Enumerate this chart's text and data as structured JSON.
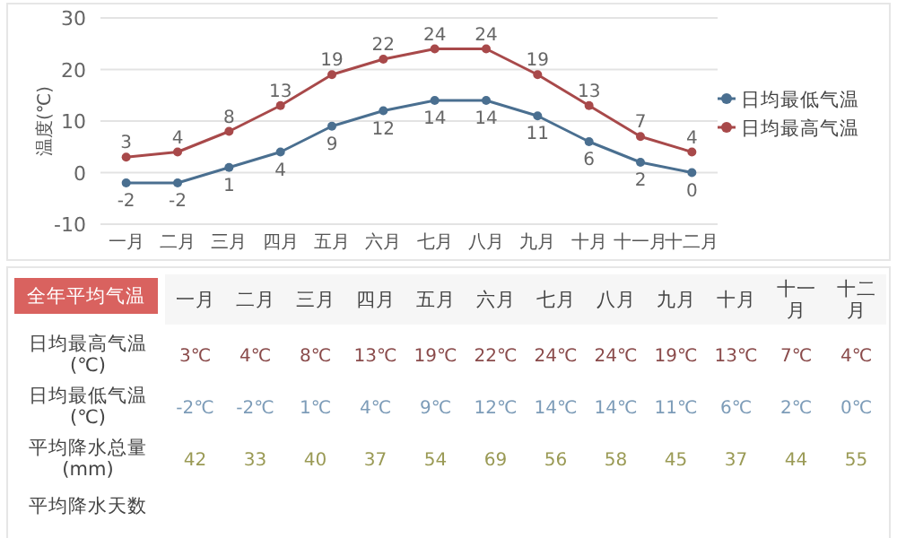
{
  "chart_data": [
    {
      "type": "line",
      "ylabel": "温度(℃)",
      "categories": [
        "一月",
        "二月",
        "三月",
        "四月",
        "五月",
        "六月",
        "七月",
        "八月",
        "九月",
        "十月",
        "十一月",
        "十二月"
      ],
      "series": [
        {
          "name": "日均最低气温",
          "color": "#4a6f90",
          "values": [
            -2,
            -2,
            1,
            4,
            9,
            12,
            14,
            14,
            11,
            6,
            2,
            0
          ]
        },
        {
          "name": "日均最高气温",
          "color": "#a8494a",
          "values": [
            3,
            4,
            8,
            13,
            19,
            22,
            24,
            24,
            19,
            13,
            7,
            4
          ]
        }
      ],
      "ylim": [
        -10,
        30
      ],
      "yticks": [
        -10,
        0,
        10,
        20,
        30
      ],
      "grid": "y",
      "legend": "right",
      "marker": "circle",
      "data_labels": true
    },
    {
      "type": "other",
      "title": "全年平均气温",
      "categories": [
        "一月",
        "二月",
        "三月",
        "四月",
        "五月",
        "六月",
        "七月",
        "八月",
        "九月",
        "十月",
        "十一月",
        "十二月"
      ],
      "y_categories": [
        "日均最高气温\n(℃)",
        "日均最低气温\n(℃)",
        "平均降水总量\n(mm)",
        "平均降水天数"
      ],
      "cell_labels": [
        [
          "3℃",
          "4℃",
          "8℃",
          "13℃",
          "19℃",
          "22℃",
          "24℃",
          "24℃",
          "19℃",
          "13℃",
          "7℃",
          "4℃"
        ],
        [
          "-2℃",
          "-2℃",
          "1℃",
          "4℃",
          "9℃",
          "12℃",
          "14℃",
          "14℃",
          "11℃",
          "6℃",
          "2℃",
          "0℃"
        ],
        [
          "42",
          "33",
          "40",
          "37",
          "54",
          "69",
          "56",
          "58",
          "45",
          "37",
          "44",
          "55"
        ],
        [
          null,
          null,
          null,
          null,
          null,
          null,
          null,
          null,
          null,
          null,
          null,
          null
        ]
      ]
    }
  ]
}
